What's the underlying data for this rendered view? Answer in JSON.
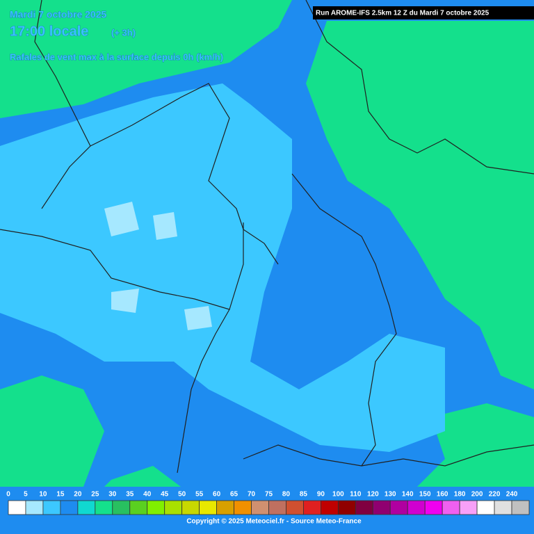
{
  "header": {
    "date": "Mardi 7 octobre 2025",
    "time": "17:00 locale",
    "offset": "(+ 3h)",
    "subtitle": "Rafales de vent max à la surface depuis 0h (km/h)",
    "run": "Run AROME-IFS 2.5km 12 Z du Mardi 7 octobre 2025"
  },
  "legend": {
    "steps": [
      {
        "value": 0,
        "color": "#ffffff"
      },
      {
        "value": 5,
        "color": "#a6e8ff"
      },
      {
        "value": 10,
        "color": "#3cc8ff"
      },
      {
        "value": 15,
        "color": "#1e8cf0"
      },
      {
        "value": 20,
        "color": "#10d8d0"
      },
      {
        "value": 25,
        "color": "#14e08c"
      },
      {
        "value": 30,
        "color": "#28c060"
      },
      {
        "value": 35,
        "color": "#5ad020"
      },
      {
        "value": 40,
        "color": "#80f000"
      },
      {
        "value": 45,
        "color": "#a8e000"
      },
      {
        "value": 50,
        "color": "#c8d800"
      },
      {
        "value": 55,
        "color": "#e8e800"
      },
      {
        "value": 60,
        "color": "#d8a000"
      },
      {
        "value": 65,
        "color": "#f09000"
      },
      {
        "value": 70,
        "color": "#d09070"
      },
      {
        "value": 75,
        "color": "#c07060"
      },
      {
        "value": 80,
        "color": "#d05030"
      },
      {
        "value": 85,
        "color": "#e02020"
      },
      {
        "value": 90,
        "color": "#c00000"
      },
      {
        "value": 100,
        "color": "#900000"
      },
      {
        "value": 110,
        "color": "#800040"
      },
      {
        "value": 120,
        "color": "#900070"
      },
      {
        "value": 130,
        "color": "#b000a0"
      },
      {
        "value": 140,
        "color": "#d000d0"
      },
      {
        "value": 150,
        "color": "#f000f0"
      },
      {
        "value": 160,
        "color": "#f060f0"
      },
      {
        "value": 180,
        "color": "#f8a0f8"
      },
      {
        "value": 200,
        "color": "#ffffff"
      },
      {
        "value": 220,
        "color": "#e0e0e0"
      },
      {
        "value": 240,
        "color": "#c0c0c0"
      }
    ]
  },
  "copyright": "Copyright © 2025 Meteociel.fr - Source Meteo-France"
}
